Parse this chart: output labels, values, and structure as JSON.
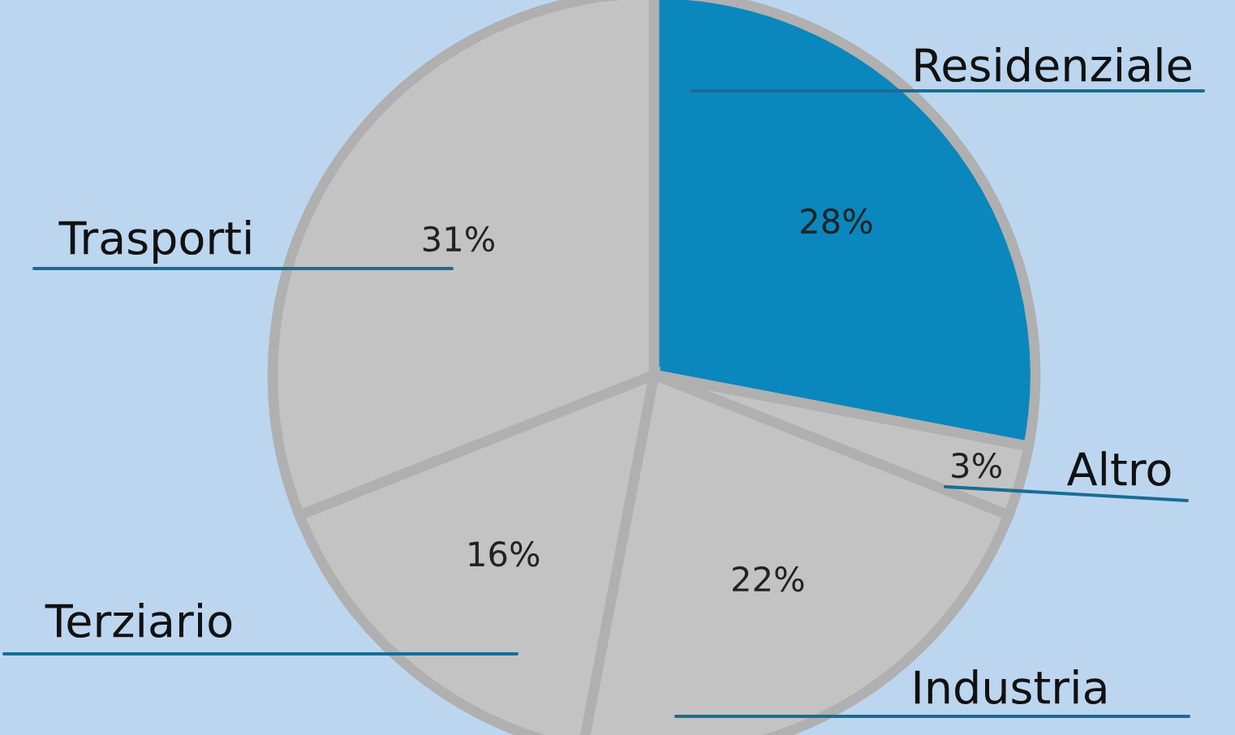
{
  "chart_data": {
    "type": "pie",
    "categories": [
      "Residenziale",
      "Altro",
      "Industria",
      "Terziario",
      "Trasporti"
    ],
    "values": [
      28,
      3,
      22,
      16,
      31
    ],
    "colors": [
      "#0a87bd",
      "#c3c3c3",
      "#c3c3c3",
      "#c3c3c3",
      "#c3c3c3"
    ],
    "value_labels": [
      "28%",
      "3%",
      "22%",
      "16%",
      "31%"
    ],
    "legend": false
  }
}
